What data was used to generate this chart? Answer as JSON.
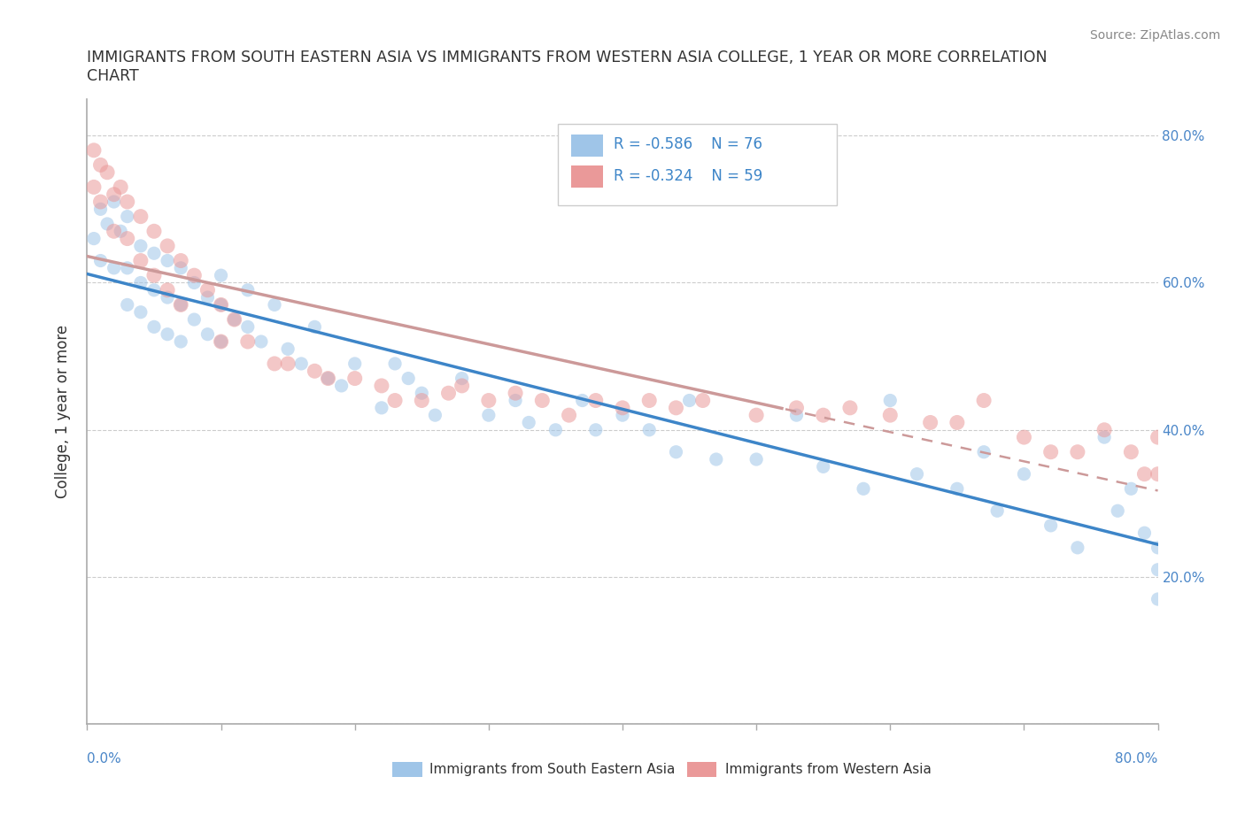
{
  "title_line1": "IMMIGRANTS FROM SOUTH EASTERN ASIA VS IMMIGRANTS FROM WESTERN ASIA COLLEGE, 1 YEAR OR MORE CORRELATION",
  "title_line2": "CHART",
  "ylabel": "College, 1 year or more",
  "source": "Source: ZipAtlas.com",
  "legend_blue_r": "R = -0.586",
  "legend_blue_n": "N = 76",
  "legend_pink_r": "R = -0.324",
  "legend_pink_n": "N = 59",
  "xlim": [
    0.0,
    0.8
  ],
  "ylim": [
    0.0,
    0.85
  ],
  "color_blue": "#9fc5e8",
  "color_pink": "#ea9999",
  "color_blue_line": "#3d85c8",
  "color_pink_line": "#cc9999",
  "blue_scatter_x": [
    0.005,
    0.01,
    0.01,
    0.015,
    0.02,
    0.02,
    0.025,
    0.03,
    0.03,
    0.03,
    0.04,
    0.04,
    0.04,
    0.05,
    0.05,
    0.05,
    0.06,
    0.06,
    0.06,
    0.07,
    0.07,
    0.07,
    0.08,
    0.08,
    0.09,
    0.09,
    0.1,
    0.1,
    0.1,
    0.11,
    0.12,
    0.12,
    0.13,
    0.14,
    0.15,
    0.16,
    0.17,
    0.18,
    0.19,
    0.2,
    0.22,
    0.23,
    0.24,
    0.25,
    0.26,
    0.28,
    0.3,
    0.32,
    0.33,
    0.35,
    0.37,
    0.38,
    0.4,
    0.42,
    0.44,
    0.45,
    0.47,
    0.5,
    0.53,
    0.55,
    0.58,
    0.6,
    0.62,
    0.65,
    0.67,
    0.68,
    0.7,
    0.72,
    0.74,
    0.76,
    0.77,
    0.78,
    0.79,
    0.8,
    0.8,
    0.8
  ],
  "blue_scatter_y": [
    0.66,
    0.63,
    0.7,
    0.68,
    0.62,
    0.71,
    0.67,
    0.69,
    0.62,
    0.57,
    0.65,
    0.6,
    0.56,
    0.64,
    0.59,
    0.54,
    0.63,
    0.58,
    0.53,
    0.62,
    0.57,
    0.52,
    0.6,
    0.55,
    0.58,
    0.53,
    0.57,
    0.52,
    0.61,
    0.55,
    0.54,
    0.59,
    0.52,
    0.57,
    0.51,
    0.49,
    0.54,
    0.47,
    0.46,
    0.49,
    0.43,
    0.49,
    0.47,
    0.45,
    0.42,
    0.47,
    0.42,
    0.44,
    0.41,
    0.4,
    0.44,
    0.4,
    0.42,
    0.4,
    0.37,
    0.44,
    0.36,
    0.36,
    0.42,
    0.35,
    0.32,
    0.44,
    0.34,
    0.32,
    0.37,
    0.29,
    0.34,
    0.27,
    0.24,
    0.39,
    0.29,
    0.32,
    0.26,
    0.24,
    0.21,
    0.17
  ],
  "pink_scatter_x": [
    0.005,
    0.005,
    0.01,
    0.01,
    0.015,
    0.02,
    0.02,
    0.025,
    0.03,
    0.03,
    0.04,
    0.04,
    0.05,
    0.05,
    0.06,
    0.06,
    0.07,
    0.07,
    0.08,
    0.09,
    0.1,
    0.1,
    0.11,
    0.12,
    0.14,
    0.15,
    0.17,
    0.18,
    0.2,
    0.22,
    0.23,
    0.25,
    0.27,
    0.28,
    0.3,
    0.32,
    0.34,
    0.36,
    0.38,
    0.4,
    0.42,
    0.44,
    0.46,
    0.5,
    0.53,
    0.55,
    0.57,
    0.6,
    0.63,
    0.65,
    0.67,
    0.7,
    0.72,
    0.74,
    0.76,
    0.78,
    0.79,
    0.8,
    0.8
  ],
  "pink_scatter_y": [
    0.73,
    0.78,
    0.76,
    0.71,
    0.75,
    0.72,
    0.67,
    0.73,
    0.71,
    0.66,
    0.69,
    0.63,
    0.67,
    0.61,
    0.65,
    0.59,
    0.63,
    0.57,
    0.61,
    0.59,
    0.57,
    0.52,
    0.55,
    0.52,
    0.49,
    0.49,
    0.48,
    0.47,
    0.47,
    0.46,
    0.44,
    0.44,
    0.45,
    0.46,
    0.44,
    0.45,
    0.44,
    0.42,
    0.44,
    0.43,
    0.44,
    0.43,
    0.44,
    0.42,
    0.43,
    0.42,
    0.43,
    0.42,
    0.41,
    0.41,
    0.44,
    0.39,
    0.37,
    0.37,
    0.4,
    0.37,
    0.34,
    0.39,
    0.34
  ],
  "blue_dot_size": 120,
  "pink_dot_size": 150,
  "blue_alpha": 0.55,
  "pink_alpha": 0.55
}
